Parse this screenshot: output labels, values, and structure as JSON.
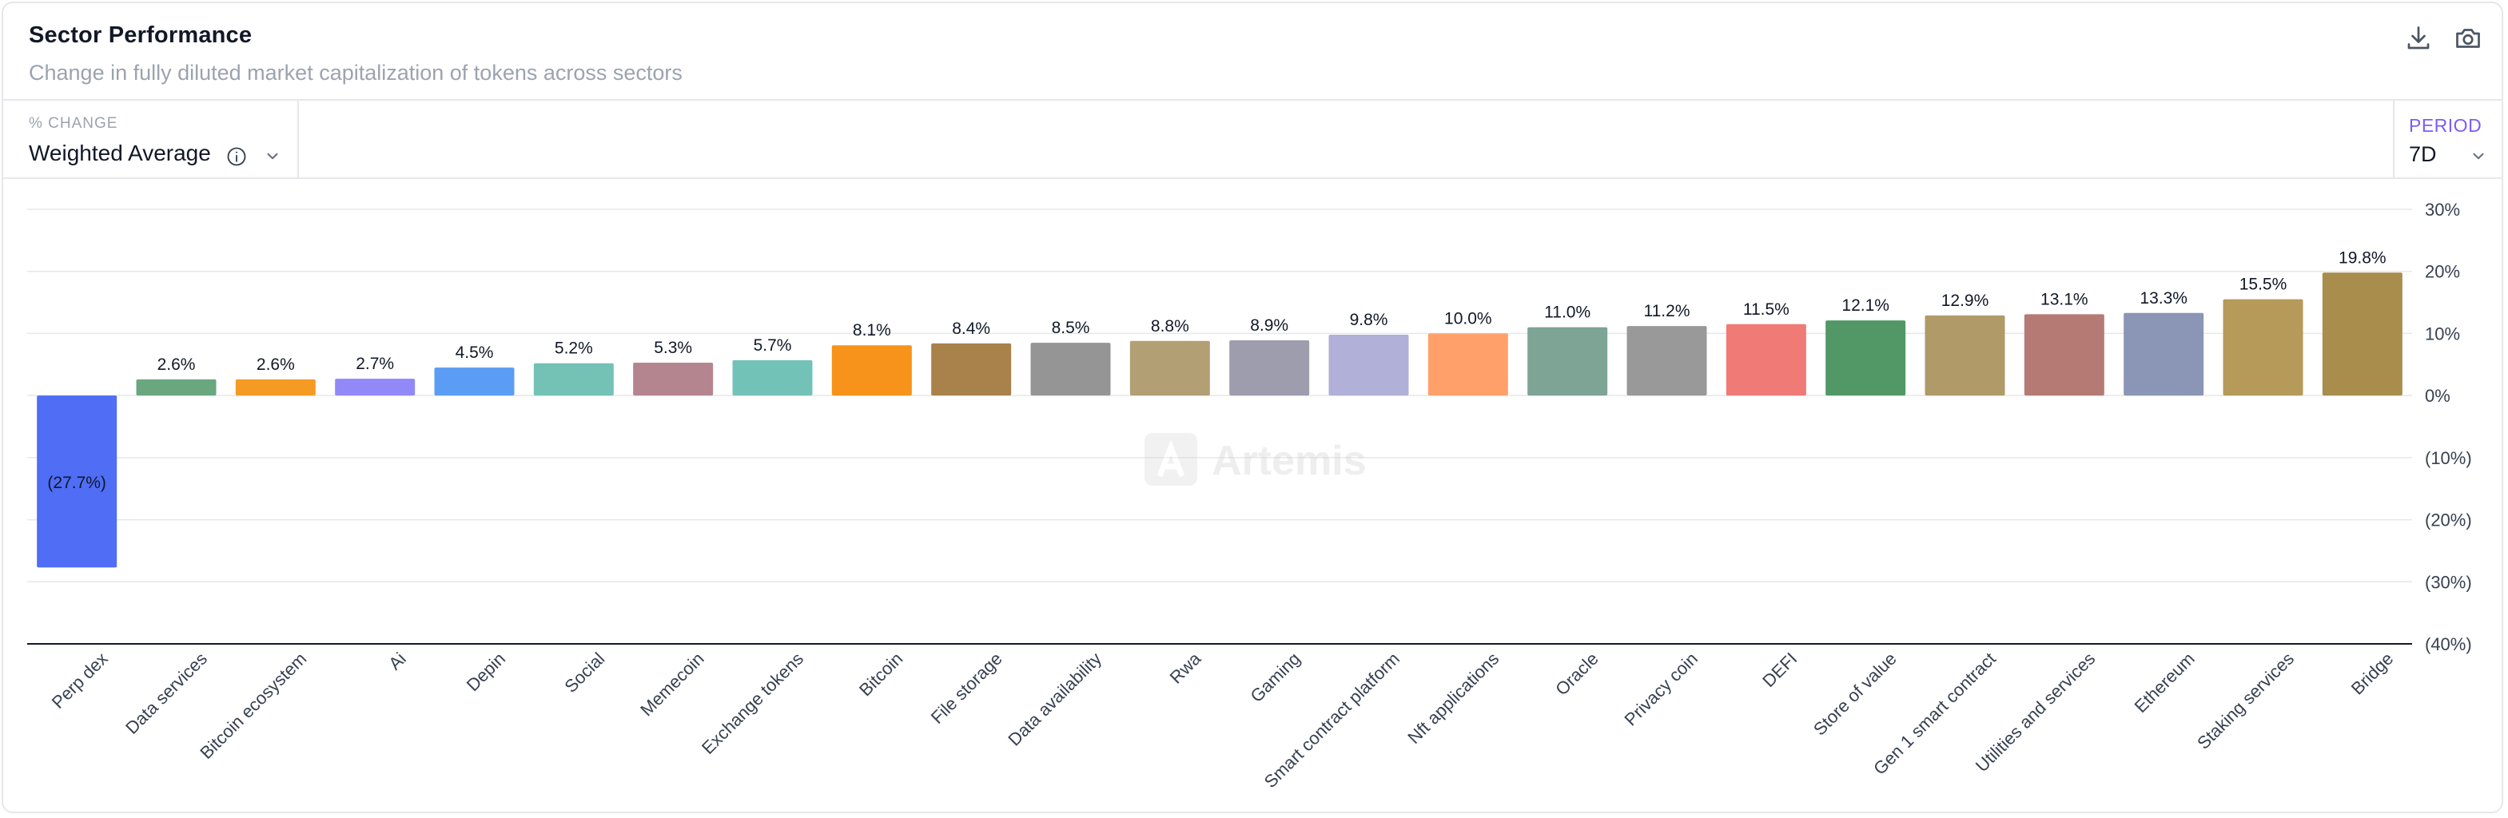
{
  "header": {
    "title": "Sector Performance",
    "subtitle": "Change in fully diluted market capitalization of tokens across sectors",
    "icons": [
      "download-icon",
      "camera-icon"
    ]
  },
  "controls": {
    "metric_label": "% CHANGE",
    "metric_value": "Weighted Average",
    "period_label": "PERIOD",
    "period_value": "7D"
  },
  "watermark": "Artemis",
  "chart_data": {
    "type": "bar",
    "title": "Sector Performance",
    "categories": [
      "Perp dex",
      "Data services",
      "Bitcoin ecosystem",
      "Ai",
      "Depin",
      "Social",
      "Memecoin",
      "Exchange tokens",
      "Bitcoin",
      "File storage",
      "Data availability",
      "Rwa",
      "Gaming",
      "Smart contract platform",
      "Nft applications",
      "Oracle",
      "Privacy coin",
      "DEFI",
      "Store of value",
      "Gen 1 smart contract",
      "Utilities and services",
      "Ethereum",
      "Staking services",
      "Bridge"
    ],
    "values": [
      -27.7,
      2.6,
      2.6,
      2.7,
      4.5,
      5.2,
      5.3,
      5.7,
      8.1,
      8.4,
      8.5,
      8.8,
      8.9,
      9.8,
      10.0,
      11.0,
      11.2,
      11.5,
      12.1,
      12.9,
      13.1,
      13.3,
      15.5,
      19.8
    ],
    "value_labels": [
      "(27.7%)",
      "2.6%",
      "2.6%",
      "2.7%",
      "4.5%",
      "5.2%",
      "5.3%",
      "5.7%",
      "8.1%",
      "8.4%",
      "8.5%",
      "8.8%",
      "8.9%",
      "9.8%",
      "10.0%",
      "11.0%",
      "11.2%",
      "11.5%",
      "12.1%",
      "12.9%",
      "13.1%",
      "13.3%",
      "15.5%",
      "19.8%"
    ],
    "colors": [
      "#4f6df5",
      "#6aa77f",
      "#f59a23",
      "#9288f8",
      "#5b9df4",
      "#73c2b5",
      "#b5858f",
      "#73c2b8",
      "#f7931a",
      "#a8824a",
      "#959595",
      "#b39f74",
      "#9d9dae",
      "#b0b0d8",
      "#ffa06b",
      "#7ea495",
      "#999999",
      "#f07a76",
      "#519866",
      "#b09a68",
      "#b57a73",
      "#8b95b5",
      "#b59a5a",
      "#a88d4c"
    ],
    "yticks": [
      30,
      20,
      10,
      0,
      -10,
      -20,
      -30,
      -40
    ],
    "ytick_labels": [
      "30%",
      "20%",
      "10%",
      "0%",
      "(10%)",
      "(20%)",
      "(30%)",
      "(40%)"
    ],
    "ylim": [
      -40,
      30
    ],
    "grid": true
  }
}
